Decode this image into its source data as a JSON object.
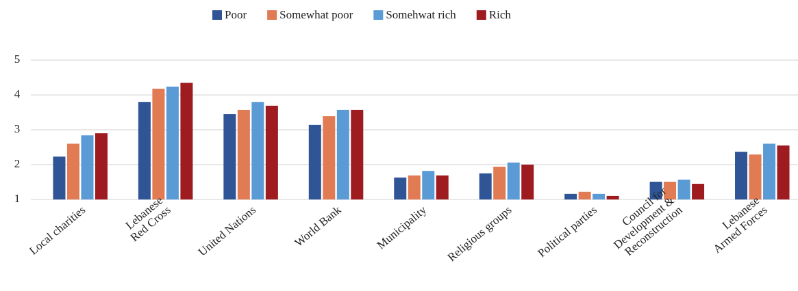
{
  "chart_data": {
    "type": "bar",
    "categories": [
      [
        "Local charities"
      ],
      [
        "Lebanese",
        "Red Cross"
      ],
      [
        "United Nations"
      ],
      [
        "World Bank"
      ],
      [
        "Municipality"
      ],
      [
        "Religious groups"
      ],
      [
        "Political parties"
      ],
      [
        "Council for",
        "Development &",
        "Reconstruction"
      ],
      [
        "Lebanese",
        "Armed Forces"
      ]
    ],
    "series": [
      {
        "name": "Poor",
        "color": "#2f5597",
        "values": [
          2.23,
          3.8,
          3.45,
          3.14,
          1.63,
          1.75,
          1.16,
          1.51,
          2.37
        ]
      },
      {
        "name": "Somewhat poor",
        "color": "#e07b54",
        "values": [
          2.6,
          4.18,
          3.57,
          3.39,
          1.69,
          1.94,
          1.22,
          1.51,
          2.29
        ]
      },
      {
        "name": "Somehwat rich",
        "color": "#5b9bd5",
        "values": [
          2.84,
          4.24,
          3.8,
          3.57,
          1.82,
          2.06,
          1.16,
          1.57,
          2.6
        ]
      },
      {
        "name": "Rich",
        "color": "#9e1b20",
        "values": [
          2.9,
          4.35,
          3.69,
          3.57,
          1.69,
          2.0,
          1.1,
          1.45,
          2.55
        ]
      }
    ],
    "ylim": [
      1,
      5
    ],
    "yticks": [
      1,
      2,
      3,
      4,
      5
    ],
    "grid": true,
    "legend": "top"
  }
}
